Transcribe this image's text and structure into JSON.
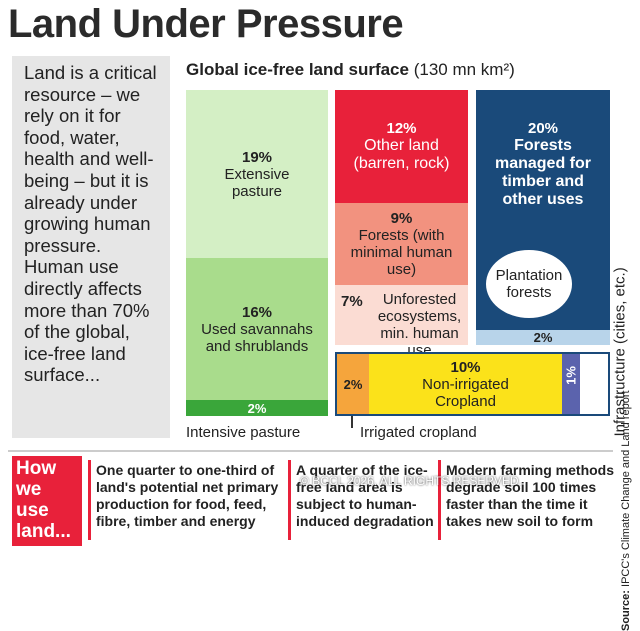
{
  "title": "Land Under Pressure",
  "intro": "Land is a critical resource – we rely on it for food, water, health and well-being – but it is already under growing human pressure. Human use directly affects more than 70% of the global, ice-free land surface...",
  "chart": {
    "subtitle": "Global ice-free land surface",
    "unit": "(130 mn km²)",
    "blocks": [
      {
        "percent": "19%",
        "label": "Extensive pasture"
      },
      {
        "percent": "16%",
        "label": "Used savannahs and shrublands"
      },
      {
        "percent": "2%",
        "label": "Intensive pasture"
      },
      {
        "percent": "12%",
        "label": "Other land (barren, rock)"
      },
      {
        "percent": "9%",
        "label": "Forests (with minimal human use)"
      },
      {
        "percent": "7%",
        "label": "Unforested ecosystems, min. human use"
      },
      {
        "percent": "20%",
        "label": "Forests managed for timber and other uses"
      },
      {
        "percent": "2%",
        "label": "Plantation forests"
      },
      {
        "percent": "2%",
        "label": "Irrigated cropland"
      },
      {
        "percent": "10%",
        "label": "Non-irrigated Cropland"
      },
      {
        "percent": "1%",
        "label": "Infrastructure (cities, etc.)"
      }
    ]
  },
  "source": {
    "label": "Source:",
    "text": "IPCC's Climate Change and Land report"
  },
  "footer": {
    "heading": "How we use land...",
    "notes": [
      "One quarter to one-third of land's potential net primary production for food, feed, fibre, timber and energy",
      "A quarter of the ice-free land area is subject to human-induced degradation",
      "Modern farming methods degrade soil 100 times faster than the time it takes new soil to form"
    ]
  },
  "watermark": "© BCCL 2026. ALL RIGHTS RESERVED."
}
